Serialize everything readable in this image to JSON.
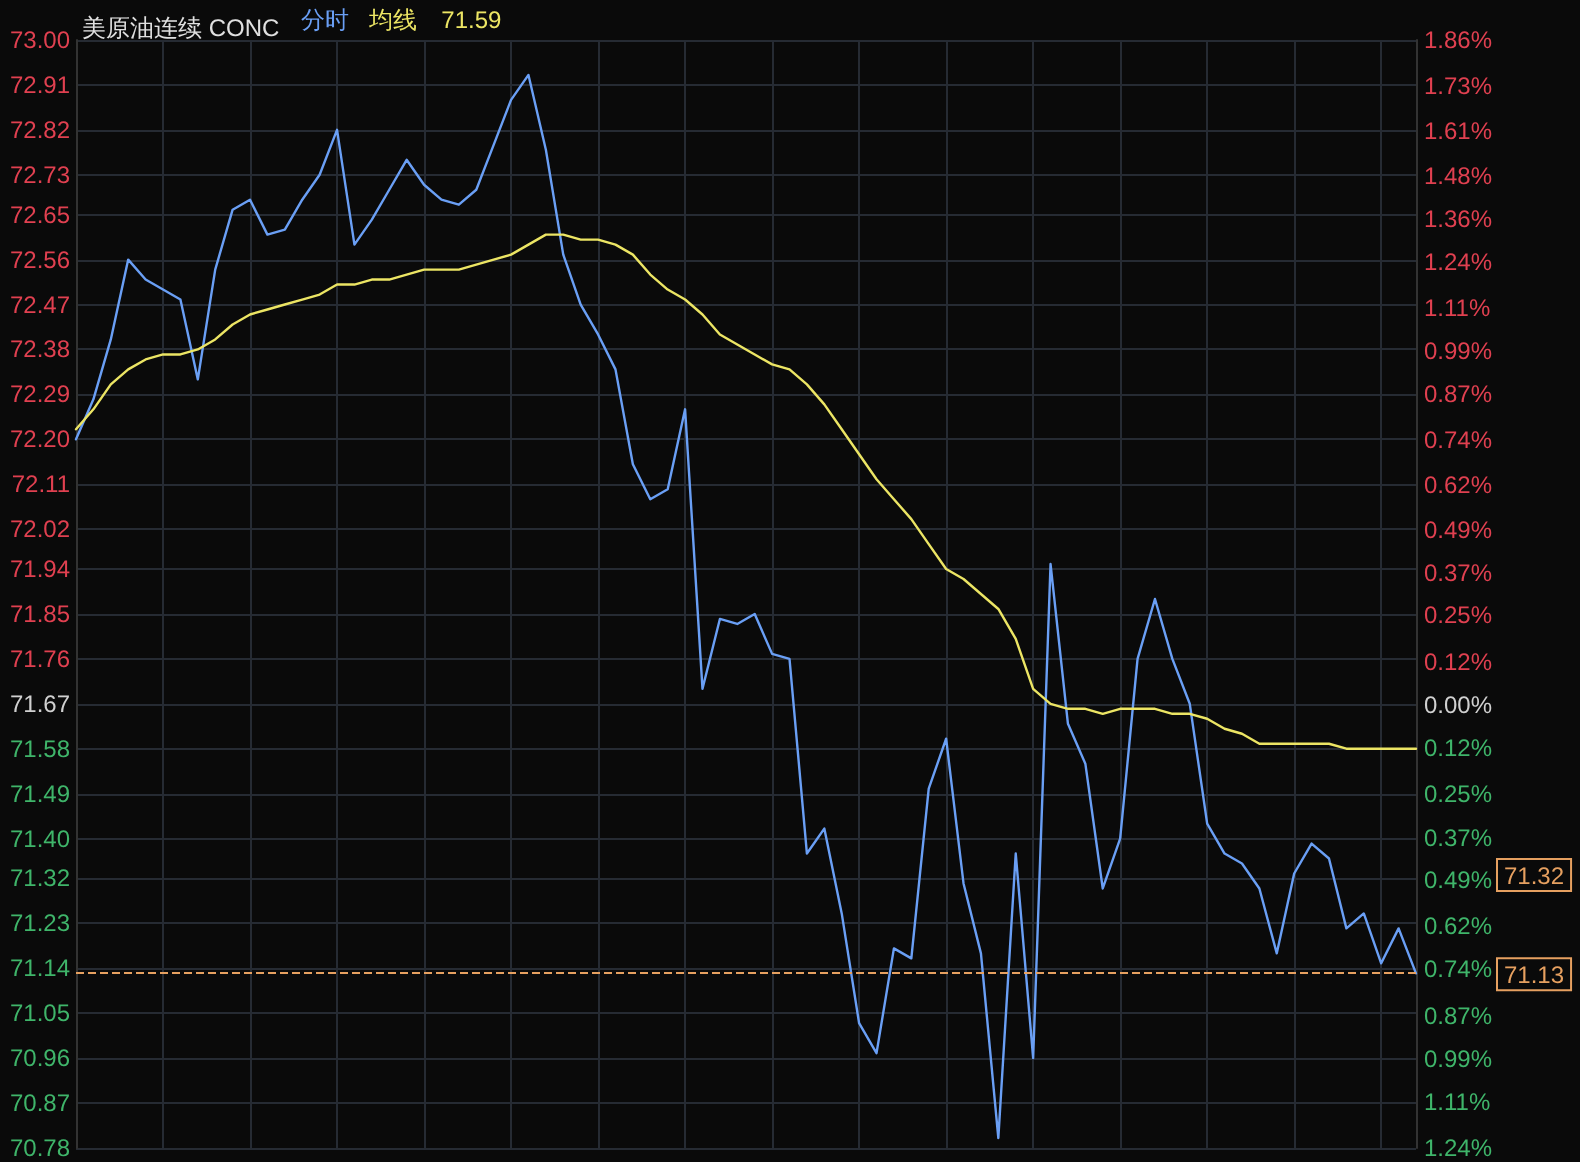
{
  "chart_data": {
    "type": "line",
    "title": "美原油连续 CONC",
    "categories": [
      null,
      null,
      null,
      null,
      null,
      null,
      null,
      null,
      null,
      null,
      null,
      null,
      null,
      null,
      null,
      null,
      null,
      null,
      null,
      null,
      null,
      null,
      null,
      null,
      null,
      null,
      null,
      null,
      null,
      null,
      null,
      null,
      null,
      null,
      null,
      null,
      null,
      null,
      null,
      null,
      null,
      null,
      null,
      null,
      null,
      null,
      null,
      null,
      null,
      null,
      null,
      null,
      null,
      null,
      null,
      null,
      null,
      null,
      null,
      null,
      null,
      null,
      null,
      null,
      null,
      null,
      null,
      null,
      null,
      null,
      null,
      null,
      null,
      null,
      null,
      null,
      null,
      null
    ],
    "ylim": [
      70.78,
      73.0
    ],
    "yticks": [
      {
        "value": 73.0,
        "label": "73.00"
      },
      72.91,
      72.82,
      72.73,
      72.65,
      72.56,
      72.47,
      72.38,
      72.29,
      {
        "value": 72.2,
        "label": "72.20"
      },
      72.11,
      72.02,
      71.94,
      71.85,
      71.76,
      71.67,
      71.58,
      71.49,
      {
        "value": 71.4,
        "label": "71.40"
      },
      71.32,
      71.23,
      71.14,
      71.05,
      70.96,
      70.87,
      70.78
    ],
    "y2lim": [
      -1.24,
      1.86
    ],
    "y2ticks": [
      {
        "value": 1.86,
        "label": "1.86%"
      },
      {
        "value": 1.73,
        "label": "1.73%"
      },
      {
        "value": 1.605,
        "label": "1.61%"
      },
      {
        "value": 1.48,
        "label": "1.48%"
      },
      {
        "value": 1.36,
        "label": "1.36%"
      },
      {
        "value": 1.24,
        "label": "1.24%"
      },
      {
        "value": 1.11,
        "label": "1.11%"
      },
      {
        "value": 0.99,
        "label": "0.99%"
      },
      {
        "value": 0.87,
        "label": "0.87%"
      },
      {
        "value": 0.74,
        "label": "0.74%"
      },
      {
        "value": 0.615,
        "label": "0.62%"
      },
      {
        "value": 0.49,
        "label": "0.49%"
      },
      {
        "value": 0.37,
        "label": "0.37%"
      },
      {
        "value": 0.25,
        "label": "0.25%"
      },
      {
        "value": 0.12,
        "label": "0.12%"
      },
      {
        "value": 0,
        "label": "0.00%"
      },
      {
        "value": -0.12,
        "label": "0.12%"
      },
      {
        "value": -0.25,
        "label": "0.25%"
      },
      {
        "value": -0.374,
        "label": "0.37%"
      },
      {
        "value": -0.49,
        "label": "0.49%"
      },
      {
        "value": -0.62,
        "label": "0.62%"
      },
      {
        "value": -0.74,
        "label": "0.74%"
      },
      {
        "value": -0.87,
        "label": "0.87%"
      },
      {
        "value": -0.99,
        "label": "0.99%"
      },
      {
        "value": -1.11,
        "label": "1.11%"
      },
      {
        "value": -1.24,
        "label": "1.24%"
      }
    ],
    "tick_labels": "y",
    "grid": true,
    "line_style": "solid",
    "series": [
      {
        "name": "分时",
        "color": "#6a9ff5",
        "values": [
          72.2,
          72.28,
          72.4,
          72.56,
          72.52,
          72.5,
          72.48,
          72.32,
          72.54,
          72.66,
          72.68,
          72.61,
          72.62,
          72.68,
          72.73,
          72.82,
          72.59,
          72.64,
          72.7,
          72.76,
          72.71,
          72.68,
          72.67,
          72.7,
          72.79,
          72.88,
          72.93,
          72.78,
          72.57,
          72.47,
          72.41,
          72.34,
          72.15,
          72.08,
          72.1,
          72.26,
          71.7,
          71.84,
          71.83,
          71.85,
          71.77,
          71.76,
          71.37,
          71.42,
          71.25,
          71.03,
          70.97,
          71.18,
          71.16,
          71.5,
          71.6,
          71.31,
          71.17,
          70.8,
          71.37,
          70.96,
          71.95,
          71.63,
          71.55,
          71.3,
          71.4,
          71.76,
          71.88,
          71.76,
          71.67,
          71.43,
          71.37,
          71.35,
          71.3,
          71.17,
          71.33,
          71.39,
          71.36,
          71.22,
          71.25,
          71.15,
          71.22,
          71.13
        ]
      },
      {
        "name": "均线",
        "color": "#ece564",
        "values": [
          72.22,
          72.26,
          72.31,
          72.34,
          72.36,
          72.37,
          72.37,
          72.38,
          72.4,
          72.43,
          72.45,
          72.46,
          72.47,
          72.48,
          72.49,
          72.51,
          72.51,
          72.52,
          72.52,
          72.53,
          72.54,
          72.54,
          72.54,
          72.55,
          72.56,
          72.57,
          72.59,
          72.61,
          72.61,
          72.6,
          72.6,
          72.59,
          72.57,
          72.53,
          72.5,
          72.48,
          72.45,
          72.41,
          72.39,
          72.37,
          72.35,
          72.34,
          72.31,
          72.27,
          72.22,
          72.17,
          72.12,
          72.08,
          72.04,
          71.99,
          71.94,
          71.92,
          71.89,
          71.86,
          71.8,
          71.7,
          71.67,
          71.66,
          71.66,
          71.65,
          71.66,
          71.66,
          71.66,
          71.65,
          71.65,
          71.64,
          71.62,
          71.61,
          71.59,
          71.59,
          71.59,
          71.59,
          71.59,
          71.58,
          71.58,
          71.58,
          71.58,
          71.58
        ]
      }
    ],
    "ref_lines": [
      {
        "axis": "y",
        "value": 71.13,
        "label": "71.13",
        "color": "#e6a060",
        "line_style": "dashed"
      }
    ],
    "annotations": [
      "71.59",
      "71.32"
    ]
  }
}
